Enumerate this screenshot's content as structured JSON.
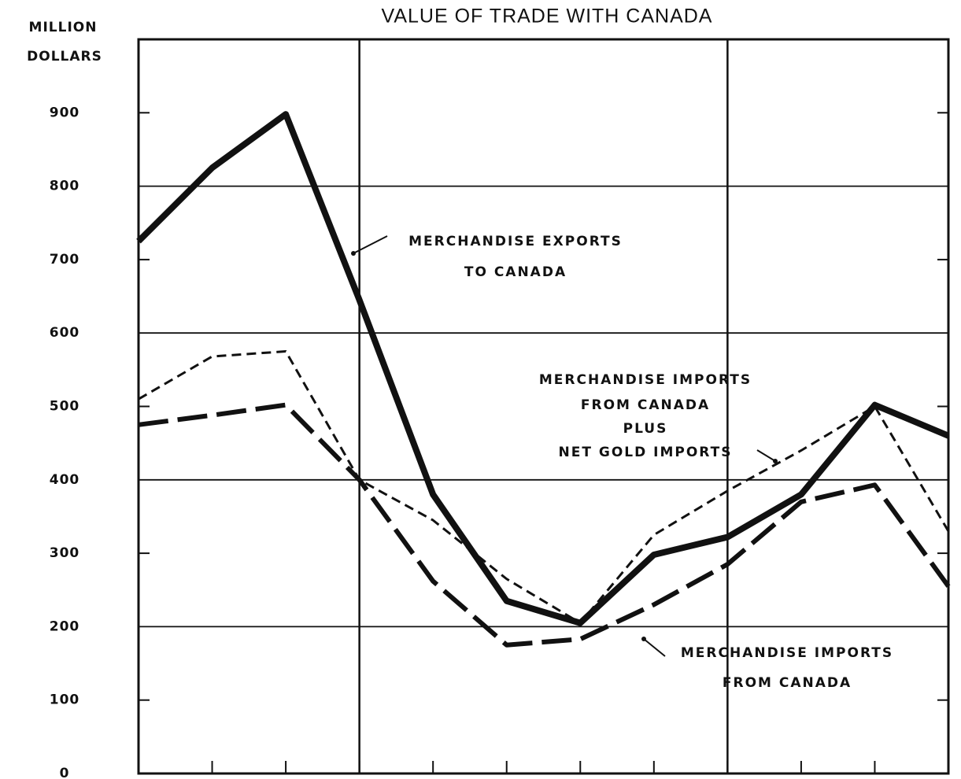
{
  "chart_data": {
    "type": "line",
    "title": "VALUE OF TRADE WITH CANADA",
    "y_label_lines": [
      "MILLION",
      "DOLLARS"
    ],
    "categories": [
      null,
      null,
      null,
      null,
      null,
      null,
      null,
      null,
      null,
      null,
      null,
      null
    ],
    "ylim": [
      0,
      1000
    ],
    "yticks": [
      0,
      100,
      200,
      300,
      400,
      500,
      600,
      700,
      800,
      900
    ],
    "grid": true,
    "series": [
      {
        "label_lines": [
          "MERCHANDISE EXPORTS",
          "TO CANADA"
        ],
        "color": "#111111",
        "style": "solid",
        "values": [
          725,
          825,
          898,
          645,
          380,
          235,
          205,
          298,
          322,
          380,
          502,
          460
        ]
      },
      {
        "label_lines": [
          "MERCHANDISE IMPORTS",
          "FROM CANADA",
          "PLUS",
          "NET GOLD IMPORTS"
        ],
        "color": "#111111",
        "style": "short-dash",
        "values": [
          510,
          568,
          575,
          400,
          345,
          265,
          205,
          325,
          385,
          440,
          500,
          330
        ]
      },
      {
        "label_lines": [
          "MERCHANDISE IMPORTS",
          "FROM CANADA"
        ],
        "color": "#111111",
        "style": "long-dash",
        "values": [
          475,
          488,
          502,
          400,
          262,
          175,
          183,
          230,
          285,
          370,
          393,
          255
        ]
      }
    ]
  }
}
